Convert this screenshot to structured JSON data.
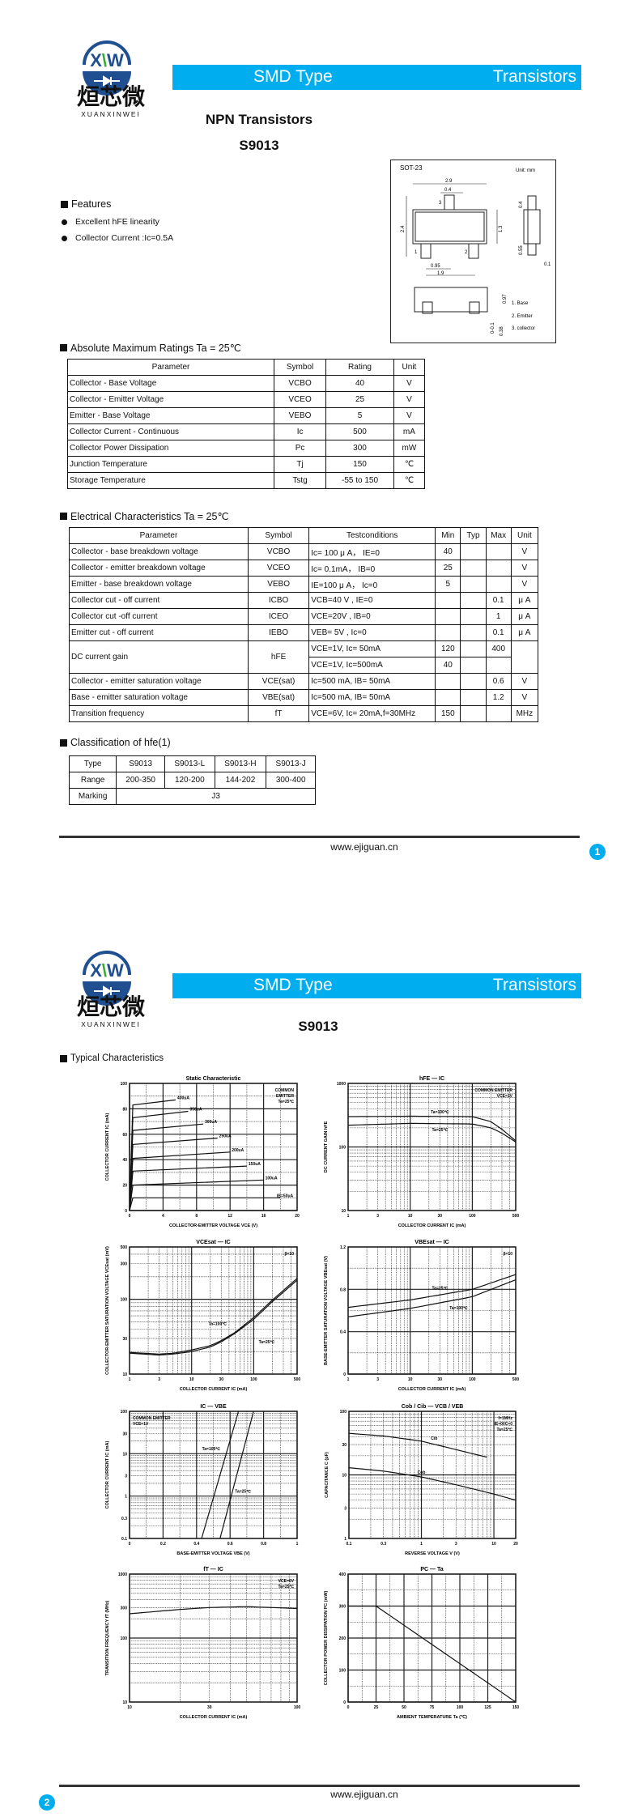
{
  "logo": {
    "letters": "XW",
    "chinese": "烜芯微",
    "latin": "XUANXINWEI",
    "blue": "#1f4e91",
    "green": "#3aa935"
  },
  "header": {
    "left": "SMD Type",
    "right": "Transistors",
    "color": "#00aeef"
  },
  "page1": {
    "title": "NPN Transistors",
    "part": "S9013",
    "features": {
      "heading": "Features",
      "items": [
        "Excellent hFE linearity",
        "Collector Current :Ic=0.5A"
      ]
    },
    "package": {
      "name": "SOT-23",
      "unit": "Unit: mm",
      "dims": [
        "2.9",
        "0.4",
        "2.4",
        "1.3",
        "0.95",
        "1.9",
        "0.4",
        "0.55",
        "0.1",
        "0.97",
        "0-0.1",
        "0.38"
      ],
      "pins": [
        "1",
        "2",
        "3"
      ],
      "legend": [
        "1. Base",
        "2. Emitter",
        "3. collector"
      ]
    },
    "abs_max": {
      "heading": "Absolute Maximum Ratings Ta = 25℃",
      "headers": [
        "Parameter",
        "Symbol",
        "Rating",
        "Unit"
      ],
      "rows": [
        [
          "Collector - Base Voltage",
          "VCBO",
          "40",
          "V"
        ],
        [
          "Collector - Emitter Voltage",
          "VCEO",
          "25",
          "V"
        ],
        [
          "Emitter - Base Voltage",
          "VEBO",
          "5",
          "V"
        ],
        [
          "Collector Current  - Continuous",
          "Ic",
          "500",
          "mA"
        ],
        [
          "Collector Power Dissipation",
          "Pc",
          "300",
          "mW"
        ],
        [
          "Junction Temperature",
          "Tj",
          "150",
          "℃"
        ],
        [
          "Storage Temperature",
          "Tstg",
          "-55 to 150",
          "℃"
        ]
      ]
    },
    "elec": {
      "heading": "Electrical Characteristics Ta = 25℃",
      "headers": [
        "Parameter",
        "Symbol",
        "Testconditions",
        "Min",
        "Typ",
        "Max",
        "Unit"
      ],
      "rows": [
        {
          "param": "Collector - base breakdown voltage",
          "symbol": "VCBO",
          "cond": [
            "Ic= 100 μ A， IE=0"
          ],
          "min": [
            "40"
          ],
          "typ": [
            ""
          ],
          "max": [
            ""
          ],
          "unit": "V"
        },
        {
          "param": "Collector - emitter breakdown voltage",
          "symbol": "VCEO",
          "cond": [
            "Ic= 0.1mA， IB=0"
          ],
          "min": [
            "25"
          ],
          "typ": [
            ""
          ],
          "max": [
            ""
          ],
          "unit": "V"
        },
        {
          "param": "Emitter - base breakdown voltage",
          "symbol": "VEBO",
          "cond": [
            "IE=100 μ A， Ic=0"
          ],
          "min": [
            "5"
          ],
          "typ": [
            ""
          ],
          "max": [
            ""
          ],
          "unit": "V"
        },
        {
          "param": "Collector cut - off current",
          "symbol": "ICBO",
          "cond": [
            "VCB=40 V , IE=0"
          ],
          "min": [
            ""
          ],
          "typ": [
            ""
          ],
          "max": [
            "0.1"
          ],
          "unit": "μ A"
        },
        {
          "param": "Collector cut -off current",
          "symbol": "ICEO",
          "cond": [
            "VCE=20V , IB=0"
          ],
          "min": [
            ""
          ],
          "typ": [
            ""
          ],
          "max": [
            "1"
          ],
          "unit": "μ A"
        },
        {
          "param": "Emitter cut - off current",
          "symbol": "IEBO",
          "cond": [
            "VEB= 5V , Ic=0"
          ],
          "min": [
            ""
          ],
          "typ": [
            ""
          ],
          "max": [
            "0.1"
          ],
          "unit": "μ A"
        },
        {
          "param": "DC current gain",
          "symbol": "hFE",
          "cond": [
            "VCE=1V, Ic= 50mA",
            "VCE=1V, Ic=500mA"
          ],
          "min": [
            "120",
            "40"
          ],
          "typ": [
            "",
            ""
          ],
          "max": [
            "400",
            ""
          ],
          "unit": ""
        },
        {
          "param": "Collector - emitter saturation voltage",
          "symbol": "VCE(sat)",
          "cond": [
            "Ic=500 mA, IB= 50mA"
          ],
          "min": [
            ""
          ],
          "typ": [
            ""
          ],
          "max": [
            "0.6"
          ],
          "unit": "V"
        },
        {
          "param": "Base - emitter saturation voltage",
          "symbol": "VBE(sat)",
          "cond": [
            "Ic=500 mA, IB= 50mA"
          ],
          "min": [
            ""
          ],
          "typ": [
            ""
          ],
          "max": [
            "1.2"
          ],
          "unit": "V"
        },
        {
          "param": "Transition frequency",
          "symbol": "fT",
          "cond": [
            "VCE=6V, Ic= 20mA,f=30MHz"
          ],
          "min": [
            "150"
          ],
          "typ": [
            ""
          ],
          "max": [
            ""
          ],
          "unit": "MHz"
        }
      ]
    },
    "classification": {
      "heading": "Classification of hfe(1)",
      "rows": [
        [
          "Type",
          "S9013",
          "S9013-L",
          "S9013-H",
          "S9013-J"
        ],
        [
          "Range",
          "200-350",
          "120-200",
          "144-202",
          "300-400"
        ]
      ],
      "marking_label": "Marking",
      "marking": "J3"
    },
    "footer": "www.ejiguan.cn",
    "page": "1"
  },
  "page2": {
    "part": "S9013",
    "heading": "Typical Characteristics",
    "footer": "www.ejiguan.cn",
    "page": "2"
  },
  "chart_data": [
    {
      "type": "line",
      "title": "Static Characteristic",
      "xlabel": "COLLECTOR-EMITTER VOLTAGE  VCE  (V)",
      "ylabel": "COLLECTOR CURRENT  IC  (mA)",
      "xscale": "linear",
      "yscale": "linear",
      "xlim": [
        0,
        20
      ],
      "ylim": [
        0,
        100
      ],
      "xticks": [
        0,
        4,
        8,
        12,
        16,
        20
      ],
      "yticks": [
        0,
        20,
        40,
        60,
        80,
        100
      ],
      "grid": true,
      "note": [
        "COMMON",
        "EMITTER",
        "Ta=25℃"
      ],
      "series": [
        {
          "name": "IB=50uA",
          "x": [
            0,
            0.4,
            18
          ],
          "y": [
            0,
            10,
            10
          ]
        },
        {
          "name": "100uA",
          "x": [
            0,
            0.4,
            16
          ],
          "y": [
            0,
            20,
            24
          ]
        },
        {
          "name": "150uA",
          "x": [
            0,
            0.4,
            14
          ],
          "y": [
            0,
            31,
            35
          ]
        },
        {
          "name": "200uA",
          "x": [
            0,
            0.4,
            12
          ],
          "y": [
            0,
            41,
            46
          ]
        },
        {
          "name": "250uA",
          "x": [
            0,
            0.4,
            10.5
          ],
          "y": [
            0,
            52,
            57
          ]
        },
        {
          "name": "300uA",
          "x": [
            0,
            0.4,
            8.8
          ],
          "y": [
            0,
            63,
            68
          ]
        },
        {
          "name": "350uA",
          "x": [
            0,
            0.4,
            7
          ],
          "y": [
            0,
            73,
            78
          ]
        },
        {
          "name": "400uA",
          "x": [
            0,
            0.4,
            5.5
          ],
          "y": [
            0,
            83,
            87
          ]
        }
      ]
    },
    {
      "type": "line",
      "title": "hFE — IC",
      "xlabel": "COLLECTOR CURRENT  IC  (mA)",
      "ylabel": "DC CURRENT GAIN  hFE",
      "xscale": "log",
      "yscale": "log",
      "xlim": [
        1,
        500
      ],
      "ylim": [
        10,
        1000
      ],
      "xticks": [
        1,
        3,
        10,
        30,
        100,
        500
      ],
      "yticks": [
        10,
        100,
        1000
      ],
      "grid": true,
      "note": [
        "COMMON EMITTER",
        "VCE=1V"
      ],
      "series": [
        {
          "name": "Ta=100℃",
          "x": [
            1,
            10,
            100,
            200,
            300,
            500
          ],
          "y": [
            300,
            305,
            300,
            250,
            190,
            125
          ]
        },
        {
          "name": "Ta=25℃",
          "x": [
            1,
            10,
            100,
            200,
            300,
            500
          ],
          "y": [
            220,
            235,
            230,
            200,
            165,
            120
          ]
        }
      ]
    },
    {
      "type": "line",
      "title": "VCEsat — IC",
      "xlabel": "COLLECTOR CURRENT  IC  (mA)",
      "ylabel": "COLLECTOR-EMITTER SATURATION VOLTAGE  VCEsat  (mV)",
      "xscale": "log",
      "yscale": "log",
      "xlim": [
        1,
        500
      ],
      "ylim": [
        10,
        500
      ],
      "xticks": [
        1,
        3,
        10,
        30,
        100,
        500
      ],
      "yticks": [
        10,
        30,
        100,
        300,
        500
      ],
      "grid": true,
      "note": [
        "β=10"
      ],
      "series": [
        {
          "name": "Ta=100℃",
          "x": [
            1,
            3,
            5,
            10,
            20,
            30,
            50,
            100,
            200,
            500
          ],
          "y": [
            19.5,
            18.5,
            19,
            21,
            24,
            28,
            36,
            57,
            98,
            190
          ]
        },
        {
          "name": "Ta=25℃",
          "x": [
            1,
            3,
            5,
            10,
            20,
            30,
            50,
            100,
            200,
            500
          ],
          "y": [
            19,
            18,
            18.5,
            20,
            23,
            27,
            35,
            54,
            93,
            180
          ]
        }
      ]
    },
    {
      "type": "line",
      "title": "VBEsat — IC",
      "xlabel": "COLLECTOR CURRENT  IC  (mA)",
      "ylabel": "BASE-EMITTER SATURATION VOLTAGE  VBEsat  (V)",
      "xscale": "log",
      "yscale": "linear",
      "xlim": [
        1,
        500
      ],
      "ylim": [
        0,
        1.2
      ],
      "xticks": [
        1,
        3,
        10,
        30,
        100,
        500
      ],
      "yticks": [
        0.0,
        0.4,
        0.8,
        1.2
      ],
      "grid": true,
      "note": [
        "β=10"
      ],
      "series": [
        {
          "name": "Ta=25℃",
          "x": [
            1,
            10,
            100,
            500
          ],
          "y": [
            0.63,
            0.7,
            0.8,
            0.94
          ]
        },
        {
          "name": "Ta=100℃",
          "x": [
            1,
            10,
            100,
            500
          ],
          "y": [
            0.54,
            0.62,
            0.73,
            0.89
          ]
        }
      ]
    },
    {
      "type": "line",
      "title": "IC — VBE",
      "xlabel": "BASE-EMITTER VOLTAGE  VBE  (V)",
      "ylabel": "COLLECTOR CURRENT  IC  (mA)",
      "xscale": "linear",
      "yscale": "log",
      "xlim": [
        0,
        1.0
      ],
      "ylim": [
        0.1,
        100
      ],
      "xticks": [
        0.0,
        0.2,
        0.4,
        0.6,
        0.8,
        1.0
      ],
      "yticks": [
        0.1,
        0.3,
        1,
        3,
        10,
        30,
        100
      ],
      "grid": true,
      "note": [
        "COMMON EMITTER",
        "VCE=1V"
      ],
      "series": [
        {
          "name": "Ta=100℃",
          "x": [
            0.43,
            0.65
          ],
          "y": [
            0.1,
            100
          ]
        },
        {
          "name": "Ta=25℃",
          "x": [
            0.54,
            0.74
          ],
          "y": [
            0.1,
            100
          ]
        }
      ]
    },
    {
      "type": "line",
      "title": "Cob / Cib — VCB / VEB",
      "xlabel": "REVERSE VOLTAGE  V  (V)",
      "ylabel": "CAPACITANCE  C  (pF)",
      "xscale": "log",
      "yscale": "log",
      "xlim": [
        0.1,
        20
      ],
      "ylim": [
        1,
        100
      ],
      "xticks": [
        0.1,
        0.3,
        1,
        3,
        10,
        20
      ],
      "yticks": [
        1,
        3,
        10,
        30,
        100
      ],
      "grid": true,
      "note": [
        "f=1MHz",
        "IE=0/IC=0",
        "Ta=25℃"
      ],
      "series": [
        {
          "name": "Cib",
          "x": [
            0.1,
            0.3,
            1,
            3,
            8
          ],
          "y": [
            45,
            41,
            34,
            25,
            19
          ]
        },
        {
          "name": "Cob",
          "x": [
            0.1,
            0.3,
            1,
            3,
            10,
            20
          ],
          "y": [
            13,
            11.5,
            9.3,
            7,
            5,
            4
          ]
        }
      ]
    },
    {
      "type": "line",
      "title": "fT — IC",
      "xlabel": "COLLECTOR CURRENT  IC  (mA)",
      "ylabel": "TRANSITION FREQUENCY  fT  (MHz)",
      "xscale": "log",
      "yscale": "log",
      "xlim": [
        10,
        100
      ],
      "ylim": [
        10,
        1000
      ],
      "xticks": [
        10,
        30,
        100
      ],
      "yticks": [
        10,
        100,
        300,
        1000
      ],
      "grid": true,
      "note": [
        "VCE=6V",
        "Ta=25℃"
      ],
      "series": [
        {
          "x": [
            10,
            20,
            30,
            50,
            100
          ],
          "y": [
            240,
            280,
            300,
            310,
            290
          ]
        }
      ]
    },
    {
      "type": "line",
      "title": "PC — Ta",
      "xlabel": "AMBIENT TEMPERATURE  Ta  (℃)",
      "ylabel": "COLLECTOR POWER DISSIPATION  PC  (mW)",
      "xscale": "linear",
      "yscale": "linear",
      "xlim": [
        0,
        150
      ],
      "ylim": [
        0,
        400
      ],
      "xticks": [
        0,
        25,
        50,
        75,
        100,
        125,
        150
      ],
      "yticks": [
        0,
        100,
        200,
        300,
        400
      ],
      "grid": true,
      "note": [],
      "series": [
        {
          "x": [
            0,
            25,
            150
          ],
          "y": [
            300,
            300,
            0
          ]
        }
      ]
    }
  ]
}
